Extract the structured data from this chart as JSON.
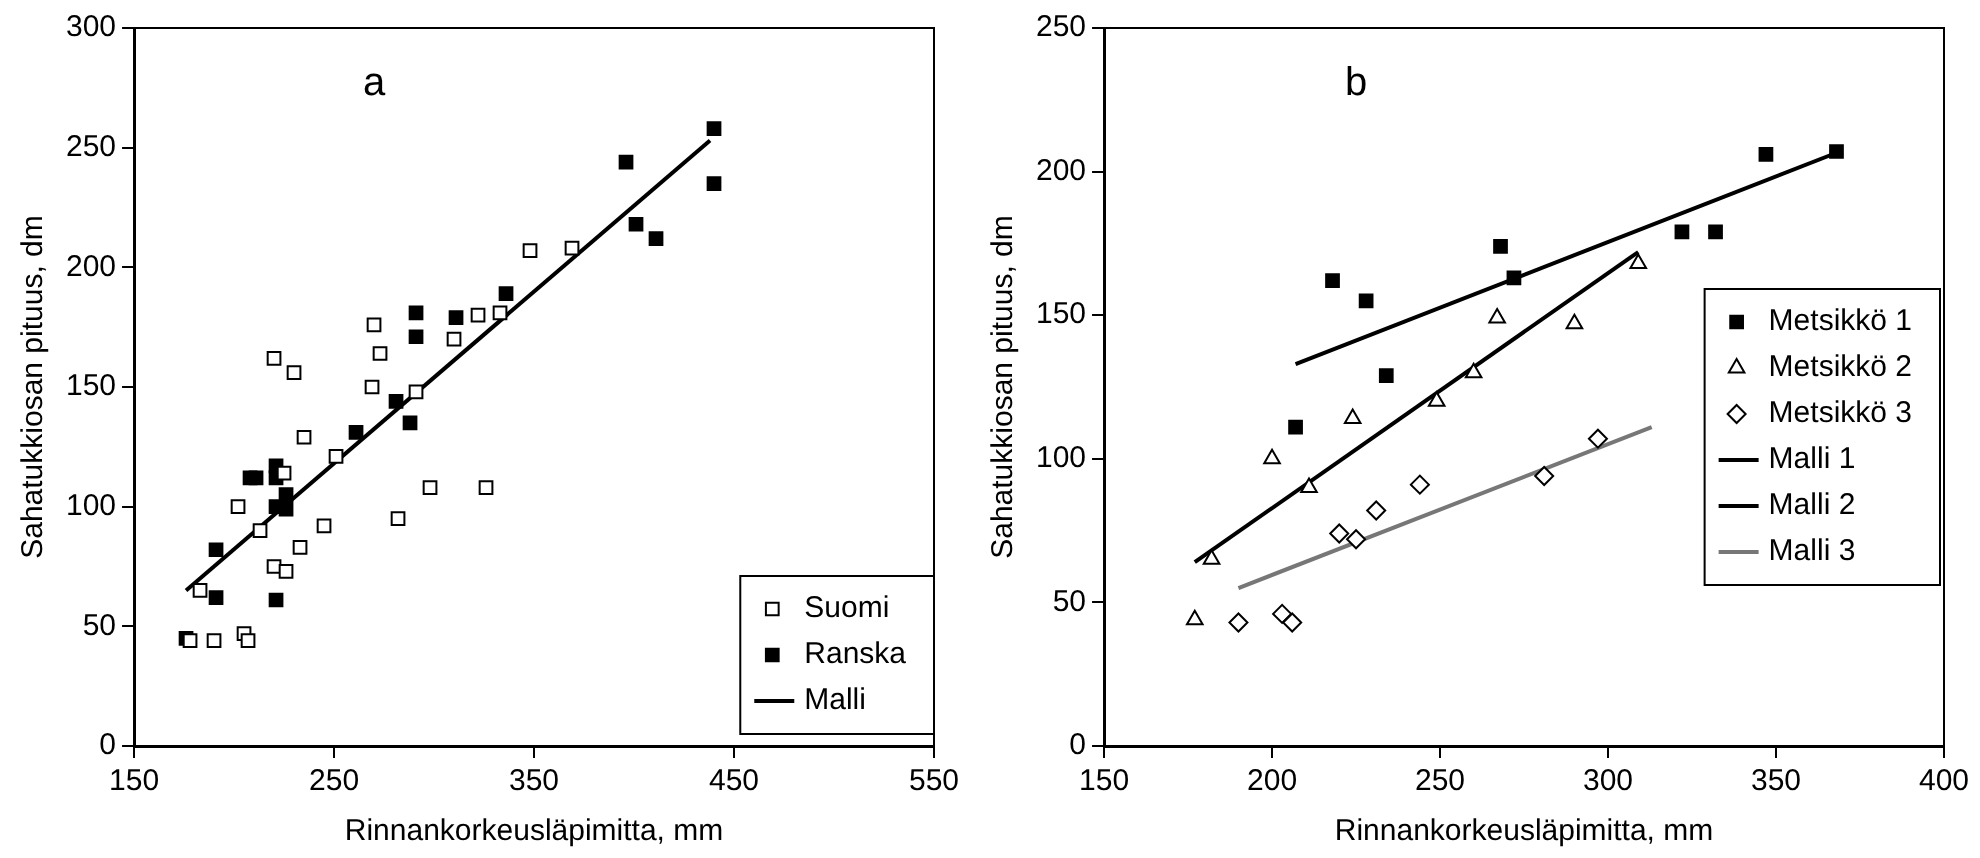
{
  "chart_data": [
    {
      "type": "scatter",
      "title": "a",
      "xlabel": "Rinnankorkeusläpimitta, mm",
      "ylabel": "Sahatukkiosan pituus, dm",
      "xlim": [
        150,
        550
      ],
      "xticks": [
        150,
        250,
        350,
        450,
        550
      ],
      "ylim": [
        0,
        300
      ],
      "yticks": [
        0,
        50,
        100,
        150,
        200,
        250,
        300
      ],
      "grid": false,
      "legend": "bottom right",
      "series": [
        {
          "name": "Suomi",
          "type": "scatter",
          "marker": "square",
          "color": "#ffffff",
          "x": [
            183,
            178,
            190,
            205,
            207,
            202,
            213,
            220,
            226,
            233,
            225,
            220,
            230,
            235,
            245,
            251,
            269,
            270,
            273,
            282,
            291,
            298,
            310,
            322,
            333,
            326,
            348,
            369
          ],
          "values": [
            65,
            44,
            44,
            47,
            44,
            100,
            90,
            75,
            73,
            83,
            114,
            162,
            156,
            129,
            92,
            121,
            150,
            176,
            164,
            95,
            148,
            108,
            170,
            180,
            181,
            108,
            207,
            208
          ]
        },
        {
          "name": "Ranska",
          "type": "scatter",
          "marker": "square",
          "color": "#000000",
          "x": [
            176,
            191,
            191,
            208,
            211,
            221,
            221,
            221,
            226,
            226,
            221,
            261,
            281,
            288,
            291,
            291,
            311,
            336,
            396,
            401,
            411,
            440,
            440
          ],
          "values": [
            45,
            82,
            62,
            112,
            112,
            117,
            112,
            100,
            105,
            99,
            61,
            131,
            144,
            135,
            181,
            171,
            179,
            189,
            244,
            218,
            212,
            258,
            235
          ]
        },
        {
          "name": "Malli",
          "type": "line",
          "color": "#000000",
          "x": [
            176,
            438
          ],
          "values": [
            65,
            253
          ]
        }
      ]
    },
    {
      "type": "scatter",
      "title": "b",
      "xlabel": "Rinnankorkeusläpimitta, mm",
      "ylabel": "Sahatukkiosan pituus, dm",
      "xlim": [
        150,
        400
      ],
      "xticks": [
        150,
        200,
        250,
        300,
        350,
        400
      ],
      "ylim": [
        0,
        250
      ],
      "yticks": [
        0,
        50,
        100,
        150,
        200,
        250
      ],
      "grid": false,
      "legend": "right",
      "series": [
        {
          "name": "Metsikkö 1",
          "type": "scatter",
          "marker": "square",
          "color": "#000000",
          "x": [
            207,
            218,
            228,
            234,
            268,
            272,
            322,
            332,
            347,
            368
          ],
          "values": [
            111,
            162,
            155,
            129,
            174,
            163,
            179,
            179,
            206,
            207
          ]
        },
        {
          "name": "Metsikkö 2",
          "type": "scatter",
          "marker": "triangle",
          "color": "#ffffff",
          "x": [
            177,
            182,
            200,
            211,
            224,
            249,
            260,
            267,
            290,
            309
          ],
          "values": [
            44,
            65,
            100,
            90,
            114,
            120,
            130,
            149,
            147,
            168
          ]
        },
        {
          "name": "Metsikkö 3",
          "type": "scatter",
          "marker": "diamond",
          "color": "#ffffff",
          "x": [
            190,
            203,
            206,
            220,
            225,
            231,
            244,
            281,
            297
          ],
          "values": [
            43,
            46,
            43,
            74,
            72,
            82,
            91,
            94,
            107
          ]
        },
        {
          "name": "Malli 1",
          "type": "line",
          "color": "#000000",
          "x": [
            207,
            369
          ],
          "values": [
            133,
            207
          ]
        },
        {
          "name": "Malli 2",
          "type": "line",
          "color": "#000000",
          "x": [
            177,
            309
          ],
          "values": [
            64,
            172
          ]
        },
        {
          "name": "Malli 3",
          "type": "line",
          "color": "#777777",
          "x": [
            190,
            313
          ],
          "values": [
            55,
            111
          ]
        }
      ]
    }
  ]
}
